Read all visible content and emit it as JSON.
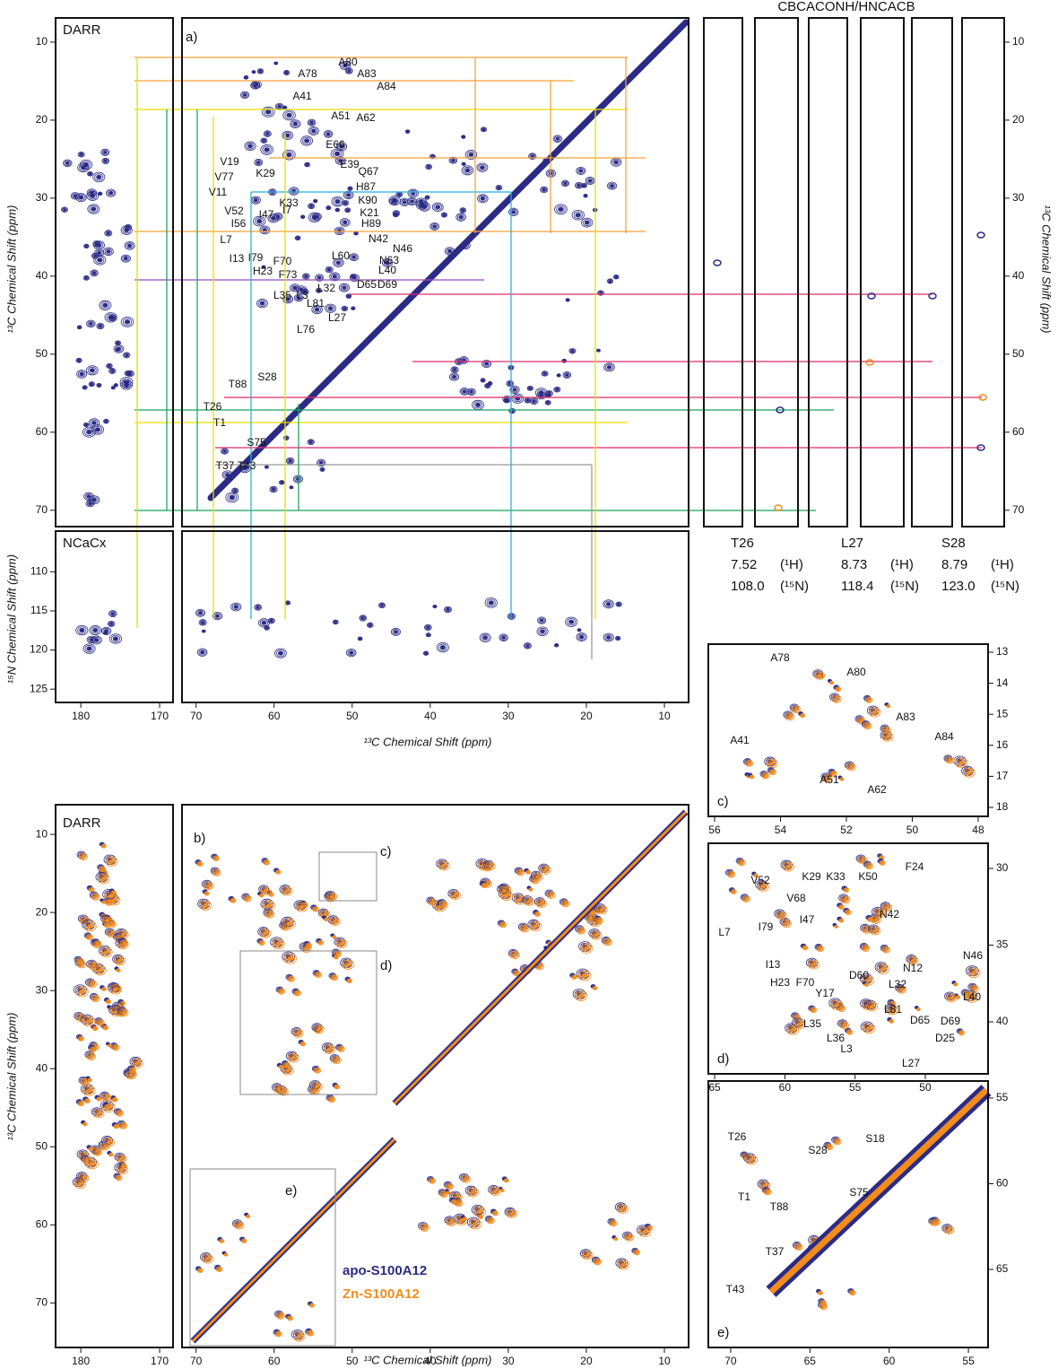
{
  "header": {
    "strip_title": "CBCACONH/HNCACB"
  },
  "axes": {
    "x_13c": "¹³C Chemical Shift (ppm)",
    "y_13c": "¹³C Chemical Shift (ppm)",
    "y_15n": "¹⁵N Chemical Shift (ppm)"
  },
  "panel_a": {
    "darr_label": "DARR",
    "label": "a)",
    "ylim": [
      6.9,
      72.1
    ],
    "yticks": [
      10,
      20,
      30,
      40,
      50,
      60,
      70
    ],
    "residues": [
      "A80",
      "A78",
      "A83",
      "A84",
      "A41",
      "A51",
      "A62",
      "E66",
      "V19",
      "E39",
      "V77",
      "K29",
      "Q67",
      "V11",
      "H87",
      "K33",
      "K90",
      "V52",
      "I47",
      "I7",
      "K21",
      "I56",
      "H89",
      "N42",
      "L7",
      "N46",
      "I13",
      "I79",
      "L60",
      "N63",
      "H23",
      "F70",
      "L40",
      "F73",
      "D65",
      "D69",
      "L35",
      "L3",
      "L32",
      "L81",
      "L27",
      "L76",
      "T26",
      "T88",
      "S28",
      "T1",
      "S75",
      "T37",
      "T43"
    ]
  },
  "ncacx": {
    "label": "NCaCx",
    "ylim": [
      104.8,
      126.7
    ],
    "yticks": [
      110,
      115,
      120,
      125
    ],
    "xlim_left": [
      183.2,
      168.3
    ],
    "xticks_left": [
      180,
      170
    ],
    "xlim": [
      71.8,
      6.9
    ],
    "xticks": [
      70,
      60,
      50,
      40,
      30,
      20,
      10
    ]
  },
  "strips": {
    "h_unit": "(¹H)",
    "n_unit": "(¹⁵N)",
    "items": [
      {
        "residue": "T26",
        "h": "7.52",
        "n": "108.0"
      },
      {
        "residue": "L27",
        "h": "8.73",
        "n": "118.4"
      },
      {
        "residue": "S28",
        "h": "8.79",
        "n": "123.0"
      }
    ]
  },
  "panel_c": {
    "label": "c)",
    "xlim": [
      56.19,
      47.7
    ],
    "xticks": [
      56,
      54,
      52,
      50,
      48
    ],
    "ylim": [
      12.74,
      18.29
    ],
    "yticks": [
      13,
      14,
      15,
      16,
      17,
      18
    ],
    "residues": [
      "A80",
      "A78",
      "A83",
      "A84",
      "A41",
      "A51",
      "A62"
    ]
  },
  "panel_d": {
    "label": "d)",
    "xlim": [
      65.45,
      45.53
    ],
    "xticks": [
      65,
      60,
      55,
      50
    ],
    "ylim": [
      28.36,
      43.39
    ],
    "yticks": [
      30,
      35,
      40
    ],
    "residues": [
      "V52",
      "K29",
      "K33",
      "K50",
      "F24",
      "V68",
      "I79",
      "I47",
      "N42",
      "L7",
      "N12",
      "N46",
      "I13",
      "H23",
      "F70",
      "D60",
      "L32",
      "Y17",
      "L81",
      "L35",
      "D65",
      "L40",
      "D69",
      "L36",
      "L3",
      "D25",
      "L27"
    ]
  },
  "panel_e": {
    "label": "e)",
    "xlim": [
      71.41,
      53.76
    ],
    "xticks": [
      70,
      65,
      60,
      55
    ],
    "ylim": [
      54.01,
      69.55
    ],
    "yticks": [
      55,
      60,
      65
    ],
    "residues": [
      "T26",
      "S28",
      "S18",
      "S75",
      "T1",
      "T88",
      "T37",
      "T43"
    ]
  },
  "panel_b": {
    "darr_label": "DARR",
    "label": "b)",
    "ylim": [
      6.2,
      75.7
    ],
    "yticks": [
      10,
      20,
      30,
      40,
      50,
      60,
      70
    ],
    "xlim_left": [
      183.2,
      168.3
    ],
    "xticks_left": [
      180,
      170
    ],
    "xlim": [
      71.8,
      6.9
    ],
    "xticks": [
      70,
      60,
      50,
      40,
      30,
      20,
      10
    ],
    "zoom_labels": [
      "c)",
      "d)",
      "e)"
    ]
  },
  "legend": [
    {
      "name": "apo-S100A12",
      "color": "#2b2b85"
    },
    {
      "name": "Zn-S100A12",
      "color": "#f28c1c"
    }
  ]
}
